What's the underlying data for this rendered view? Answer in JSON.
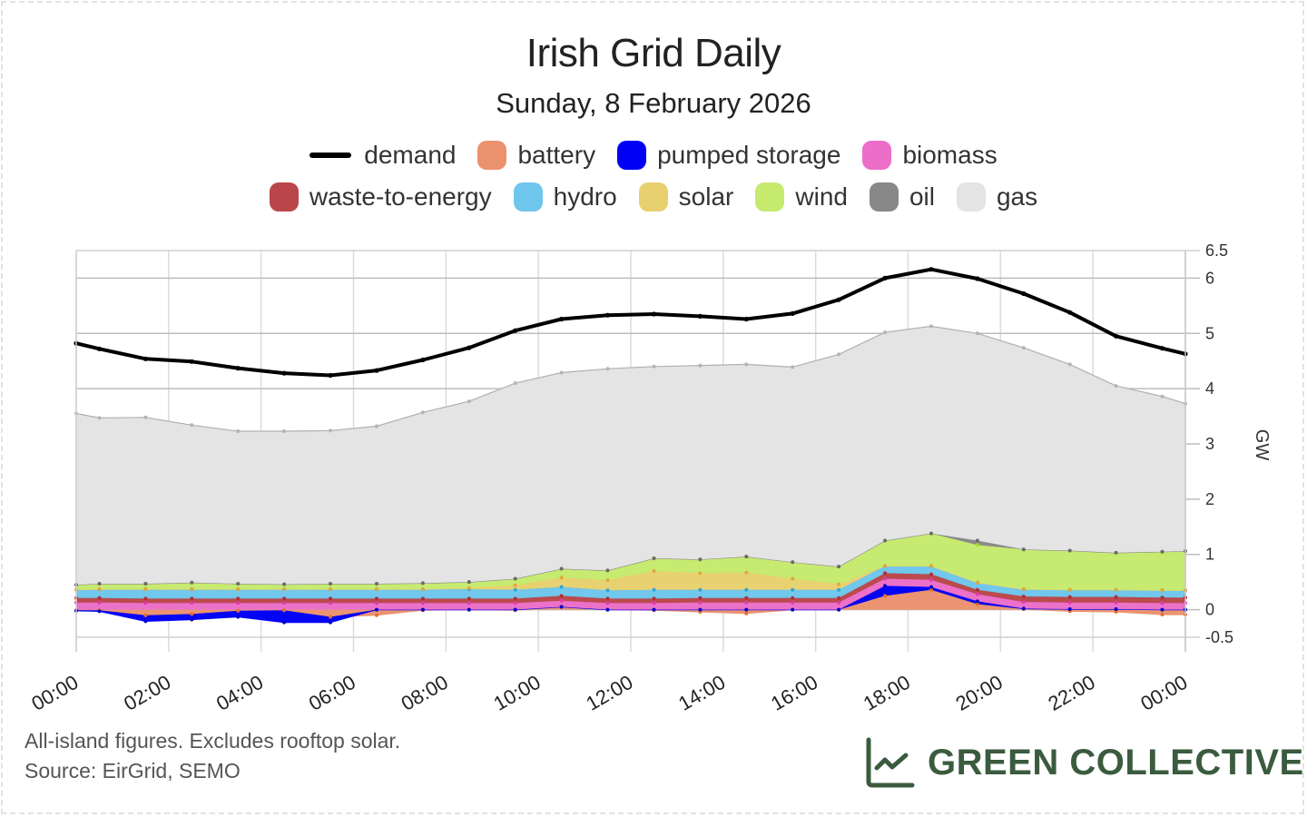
{
  "header": {
    "title": "Irish Grid Daily",
    "subtitle": "Sunday, 8 February 2026"
  },
  "legend": {
    "row1": [
      {
        "key": "demand",
        "label": "demand",
        "color": "#000000",
        "kind": "line"
      },
      {
        "key": "battery",
        "label": "battery",
        "color": "#ec916e",
        "kind": "area"
      },
      {
        "key": "pumped",
        "label": "pumped storage",
        "color": "#0000f5",
        "kind": "area"
      },
      {
        "key": "biomass",
        "label": "biomass",
        "color": "#ec6ec8",
        "kind": "area"
      }
    ],
    "row2": [
      {
        "key": "waste",
        "label": "waste-to-energy",
        "color": "#ba4649",
        "kind": "area"
      },
      {
        "key": "hydro",
        "label": "hydro",
        "color": "#6ec6ec",
        "kind": "area"
      },
      {
        "key": "solar",
        "label": "solar",
        "color": "#e8d06e",
        "kind": "area"
      },
      {
        "key": "wind",
        "label": "wind",
        "color": "#c6ea6e",
        "kind": "area"
      },
      {
        "key": "oil",
        "label": "oil",
        "color": "#888888",
        "kind": "area"
      },
      {
        "key": "gas",
        "label": "gas",
        "color": "#e4e4e4",
        "kind": "area"
      }
    ]
  },
  "footer": {
    "note": "All-island figures. Excludes rooftop solar.",
    "source": "Source: EirGrid, SEMO"
  },
  "brand": {
    "name": "GREEN COLLECTIVE",
    "color": "#3b5b3e",
    "icon": "line-chart-icon"
  },
  "chart_data": {
    "type": "area",
    "stacked": true,
    "title": "Irish Grid Daily",
    "subtitle": "Sunday, 8 February 2026",
    "xlabel": "",
    "ylabel": "GW",
    "y_axis_side": "right",
    "ylim": [
      -0.5,
      6.5
    ],
    "yticks": [
      -0.5,
      0,
      1,
      2,
      3,
      4,
      5,
      6,
      6.5
    ],
    "xlim_hours": [
      0,
      24
    ],
    "xtick_hours": [
      0,
      2,
      4,
      6,
      8,
      10,
      12,
      14,
      16,
      18,
      20,
      22,
      24
    ],
    "xtick_labels": [
      "00:00",
      "02:00",
      "04:00",
      "06:00",
      "08:00",
      "10:00",
      "12:00",
      "14:00",
      "16:00",
      "18:00",
      "20:00",
      "22:00",
      "00:00"
    ],
    "grid": true,
    "legend_position": "top",
    "x_hours": [
      0,
      0.5,
      1.5,
      2.5,
      3.5,
      4.5,
      5.5,
      6.5,
      7.5,
      8.5,
      9.5,
      10.5,
      11.5,
      12.5,
      13.5,
      14.5,
      15.5,
      16.5,
      17.5,
      18.5,
      19.5,
      20.5,
      21.5,
      22.5,
      23.5,
      24
    ],
    "stack_order": [
      "battery",
      "pumped",
      "biomass",
      "waste",
      "hydro",
      "solar",
      "wind",
      "oil",
      "gas"
    ],
    "series": [
      {
        "key": "battery",
        "name": "battery",
        "color": "#ec916e",
        "values": [
          -0.01,
          -0.01,
          -0.1,
          -0.08,
          -0.02,
          -0.01,
          -0.13,
          -0.1,
          -0.01,
          0.0,
          -0.01,
          0.05,
          0.0,
          -0.01,
          -0.04,
          -0.07,
          0.0,
          0.0,
          0.25,
          0.36,
          0.1,
          0.01,
          -0.03,
          -0.04,
          -0.09,
          -0.09
        ]
      },
      {
        "key": "pumped",
        "name": "pumped storage",
        "color": "#0000f5",
        "values": [
          -0.01,
          -0.02,
          -0.11,
          -0.1,
          -0.11,
          -0.22,
          -0.1,
          0.0,
          0.0,
          0.0,
          0.0,
          0.0,
          0.0,
          0.0,
          0.0,
          0.0,
          0.0,
          0.0,
          0.18,
          0.05,
          0.05,
          0.01,
          0.01,
          0.01,
          0.0,
          0.0
        ]
      },
      {
        "key": "biomass",
        "name": "biomass",
        "color": "#ec6ec8",
        "values": [
          0.13,
          0.13,
          0.12,
          0.12,
          0.12,
          0.12,
          0.12,
          0.12,
          0.12,
          0.12,
          0.12,
          0.11,
          0.12,
          0.12,
          0.13,
          0.13,
          0.13,
          0.13,
          0.13,
          0.13,
          0.13,
          0.12,
          0.12,
          0.12,
          0.12,
          0.12
        ]
      },
      {
        "key": "waste",
        "name": "waste-to-energy",
        "color": "#ba4649",
        "values": [
          0.08,
          0.08,
          0.08,
          0.08,
          0.08,
          0.08,
          0.08,
          0.08,
          0.08,
          0.08,
          0.08,
          0.09,
          0.08,
          0.08,
          0.08,
          0.08,
          0.08,
          0.08,
          0.1,
          0.1,
          0.08,
          0.1,
          0.1,
          0.1,
          0.1,
          0.1
        ]
      },
      {
        "key": "hydro",
        "name": "hydro",
        "color": "#6ec6ec",
        "values": [
          0.15,
          0.16,
          0.17,
          0.17,
          0.17,
          0.17,
          0.17,
          0.17,
          0.17,
          0.17,
          0.16,
          0.16,
          0.15,
          0.16,
          0.15,
          0.15,
          0.15,
          0.15,
          0.13,
          0.15,
          0.13,
          0.13,
          0.13,
          0.13,
          0.13,
          0.13
        ]
      },
      {
        "key": "solar",
        "name": "solar",
        "color": "#e8d06e",
        "values": [
          0.0,
          0.0,
          0.0,
          0.0,
          0.0,
          0.0,
          0.0,
          0.0,
          0.0,
          0.02,
          0.08,
          0.17,
          0.18,
          0.34,
          0.3,
          0.31,
          0.2,
          0.1,
          0.0,
          0.0,
          0.0,
          0.0,
          0.0,
          0.0,
          0.0,
          0.0
        ]
      },
      {
        "key": "wind",
        "name": "wind",
        "color": "#c6ea6e",
        "values": [
          0.09,
          0.1,
          0.1,
          0.12,
          0.1,
          0.09,
          0.1,
          0.1,
          0.11,
          0.11,
          0.12,
          0.16,
          0.18,
          0.23,
          0.25,
          0.29,
          0.3,
          0.32,
          0.46,
          0.59,
          0.68,
          0.72,
          0.71,
          0.67,
          0.7,
          0.71
        ]
      },
      {
        "key": "oil",
        "name": "oil",
        "color": "#888888",
        "values": [
          0,
          0,
          0,
          0,
          0,
          0,
          0,
          0,
          0,
          0,
          0,
          0,
          0,
          0,
          0,
          0,
          0,
          0,
          0,
          0,
          0.08,
          0,
          0,
          0,
          0,
          0
        ]
      },
      {
        "key": "gas",
        "name": "gas",
        "color": "#e4e4e4",
        "values": [
          3.1,
          3.0,
          3.01,
          2.85,
          2.76,
          2.77,
          2.77,
          2.85,
          3.09,
          3.27,
          3.54,
          3.55,
          3.65,
          3.47,
          3.51,
          3.48,
          3.53,
          3.84,
          3.77,
          3.75,
          3.75,
          3.65,
          3.37,
          3.02,
          2.81,
          2.67
        ]
      },
      {
        "key": "demand",
        "name": "demand",
        "color": "#000000",
        "kind": "line",
        "values": [
          4.82,
          4.72,
          4.54,
          4.49,
          4.37,
          4.28,
          4.24,
          4.33,
          4.52,
          4.74,
          5.05,
          5.26,
          5.33,
          5.35,
          5.31,
          5.26,
          5.36,
          5.61,
          6.0,
          6.16,
          5.99,
          5.72,
          5.38,
          4.95,
          4.73,
          4.63
        ]
      }
    ]
  }
}
